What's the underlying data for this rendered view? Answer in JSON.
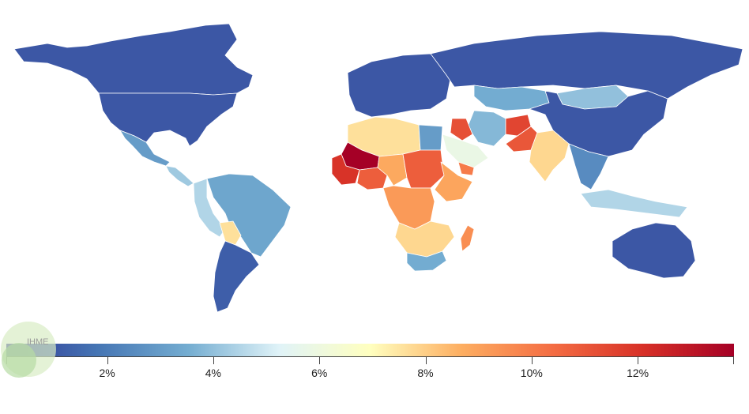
{
  "map": {
    "legend": {
      "ticks": [
        "2%",
        "4%",
        "6%",
        "8%",
        "10%",
        "12%"
      ],
      "tick_values": [
        2,
        4,
        6,
        8,
        10,
        12
      ],
      "range": [
        0.1,
        13.8
      ],
      "gradient_colors": [
        "#313695",
        "#4575b4",
        "#74add1",
        "#e0f3f8",
        "#ffffbf",
        "#fdae61",
        "#f46d43",
        "#d73027",
        "#a50026"
      ]
    },
    "watermark": {
      "text": "IHME"
    },
    "regions": [
      {
        "name": "Canada",
        "value": 1.0
      },
      {
        "name": "United States",
        "value": 1.0
      },
      {
        "name": "Mexico",
        "value": 3.0
      },
      {
        "name": "Central America",
        "value": 4.2
      },
      {
        "name": "Brazil",
        "value": 3.3
      },
      {
        "name": "Peru",
        "value": 4.5
      },
      {
        "name": "Bolivia",
        "value": 7.6
      },
      {
        "name": "Argentina",
        "value": 1.2
      },
      {
        "name": "Western Europe",
        "value": 1.0
      },
      {
        "name": "Russia",
        "value": 1.0
      },
      {
        "name": "Kazakhstan",
        "value": 3.5
      },
      {
        "name": "Mongolia",
        "value": 4.0
      },
      {
        "name": "China",
        "value": 1.0
      },
      {
        "name": "India",
        "value": 7.8
      },
      {
        "name": "Pakistan",
        "value": 11.0
      },
      {
        "name": "Afghanistan",
        "value": 11.5
      },
      {
        "name": "Iran",
        "value": 3.8
      },
      {
        "name": "Iraq",
        "value": 11.2
      },
      {
        "name": "Saudi Arabia",
        "value": 5.8
      },
      {
        "name": "Yemen",
        "value": 10.0
      },
      {
        "name": "Egypt",
        "value": 3.0
      },
      {
        "name": "North Africa",
        "value": 7.6
      },
      {
        "name": "Mali",
        "value": 13.8
      },
      {
        "name": "West Africa coast",
        "value": 12.0
      },
      {
        "name": "Nigeria",
        "value": 10.8
      },
      {
        "name": "Chad",
        "value": 8.8
      },
      {
        "name": "Sudan",
        "value": 10.8
      },
      {
        "name": "Ethiopia",
        "value": 8.9
      },
      {
        "name": "DR Congo",
        "value": 9.2
      },
      {
        "name": "Southern Africa",
        "value": 7.8
      },
      {
        "name": "South Africa",
        "value": 3.5
      },
      {
        "name": "Madagascar",
        "value": 9.5
      },
      {
        "name": "Southeast Asia",
        "value": 2.5
      },
      {
        "name": "Indonesia",
        "value": 4.5
      },
      {
        "name": "Australia",
        "value": 1.0
      }
    ]
  }
}
